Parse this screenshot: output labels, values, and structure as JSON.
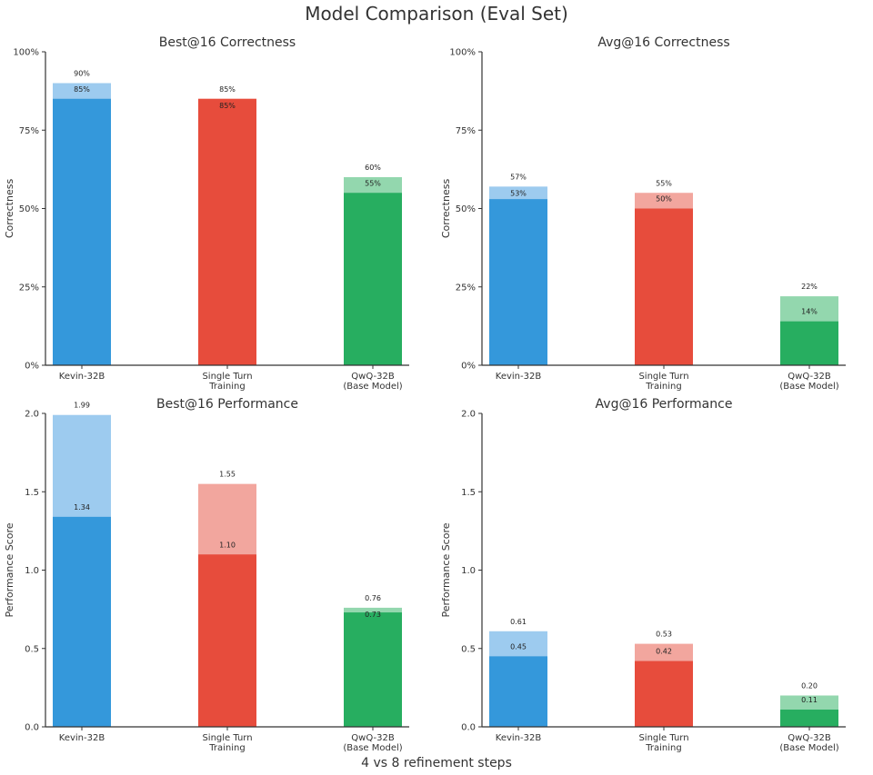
{
  "figure": {
    "title": "Model Comparison (Eval Set)",
    "footer": "4 vs 8 refinement steps"
  },
  "colors": {
    "blue": "#3498db",
    "blue_light": "#9dcbef",
    "red": "#e74c3c",
    "red_light": "#f2a69e",
    "green": "#27ae60",
    "green_light": "#93d7ae"
  },
  "chart_data": [
    {
      "type": "bar",
      "title": "Best@16 Correctness",
      "ylabel": "Correctness",
      "ylim": [
        0,
        100
      ],
      "yticks": [
        "0%",
        "25%",
        "50%",
        "75%",
        "100%"
      ],
      "categories": [
        "Kevin-32B",
        "Single Turn\nTraining",
        "QwQ-32B\n(Base Model)"
      ],
      "series": [
        {
          "values": [
            85,
            85,
            55
          ],
          "labels": [
            "85%",
            "85%",
            "55%"
          ]
        },
        {
          "values": [
            90,
            85,
            60
          ],
          "labels": [
            "90%",
            "85%",
            "60%"
          ]
        }
      ]
    },
    {
      "type": "bar",
      "title": "Avg@16 Correctness",
      "ylabel": "Correctness",
      "ylim": [
        0,
        100
      ],
      "yticks": [
        "0%",
        "25%",
        "50%",
        "75%",
        "100%"
      ],
      "categories": [
        "Kevin-32B",
        "Single Turn\nTraining",
        "QwQ-32B\n(Base Model)"
      ],
      "series": [
        {
          "values": [
            53,
            50,
            14
          ],
          "labels": [
            "53%",
            "50%",
            "14%"
          ]
        },
        {
          "values": [
            57,
            55,
            22
          ],
          "labels": [
            "57%",
            "55%",
            "22%"
          ]
        }
      ]
    },
    {
      "type": "bar",
      "title": "Best@16 Performance",
      "ylabel": "Performance Score",
      "ylim": [
        0,
        2.0
      ],
      "yticks": [
        "0.0",
        "0.5",
        "1.0",
        "1.5",
        "2.0"
      ],
      "categories": [
        "Kevin-32B",
        "Single Turn\nTraining",
        "QwQ-32B\n(Base Model)"
      ],
      "series": [
        {
          "values": [
            1.34,
            1.1,
            0.73
          ],
          "labels": [
            "1.34",
            "1.10",
            "0.73"
          ]
        },
        {
          "values": [
            1.99,
            1.55,
            0.76
          ],
          "labels": [
            "1.99",
            "1.55",
            "0.76"
          ]
        }
      ]
    },
    {
      "type": "bar",
      "title": "Avg@16 Performance",
      "ylabel": "Performance Score",
      "ylim": [
        0,
        2.0
      ],
      "yticks": [
        "0.0",
        "0.5",
        "1.0",
        "1.5",
        "2.0"
      ],
      "categories": [
        "Kevin-32B",
        "Single Turn\nTraining",
        "QwQ-32B\n(Base Model)"
      ],
      "series": [
        {
          "values": [
            0.45,
            0.42,
            0.11
          ],
          "labels": [
            "0.45",
            "0.42",
            "0.11"
          ]
        },
        {
          "values": [
            0.61,
            0.53,
            0.2
          ],
          "labels": [
            "0.61",
            "0.53",
            "0.20"
          ]
        }
      ]
    }
  ]
}
